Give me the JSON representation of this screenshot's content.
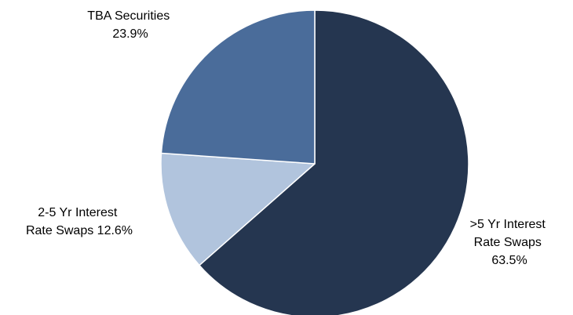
{
  "chart_data": {
    "type": "pie",
    "title": "",
    "categories": [
      ">5 Yr Interest Rate Swaps",
      "2-5 Yr Interest Rate Swaps",
      "TBA Securities"
    ],
    "values": [
      63.5,
      12.6,
      23.9
    ],
    "unit": "%",
    "start_angle": "12 o'clock",
    "direction": "clockwise",
    "slices": [
      {
        "name": ">5 Yr Interest Rate Swaps",
        "value": 63.5,
        "color": "#253650",
        "label_lines": [
          ">5 Yr Interest",
          "Rate Swaps",
          "63.5%"
        ]
      },
      {
        "name": "2-5 Yr Interest Rate Swaps",
        "value": 12.6,
        "color": "#b1c4dd",
        "label_lines": [
          "2-5 Yr Interest",
          "Rate Swaps 12.6%"
        ]
      },
      {
        "name": "TBA Securities",
        "value": 23.9,
        "color": "#4a6c9a",
        "label_lines": [
          "TBA Securities",
          "23.9%"
        ]
      }
    ],
    "legend": "none"
  }
}
